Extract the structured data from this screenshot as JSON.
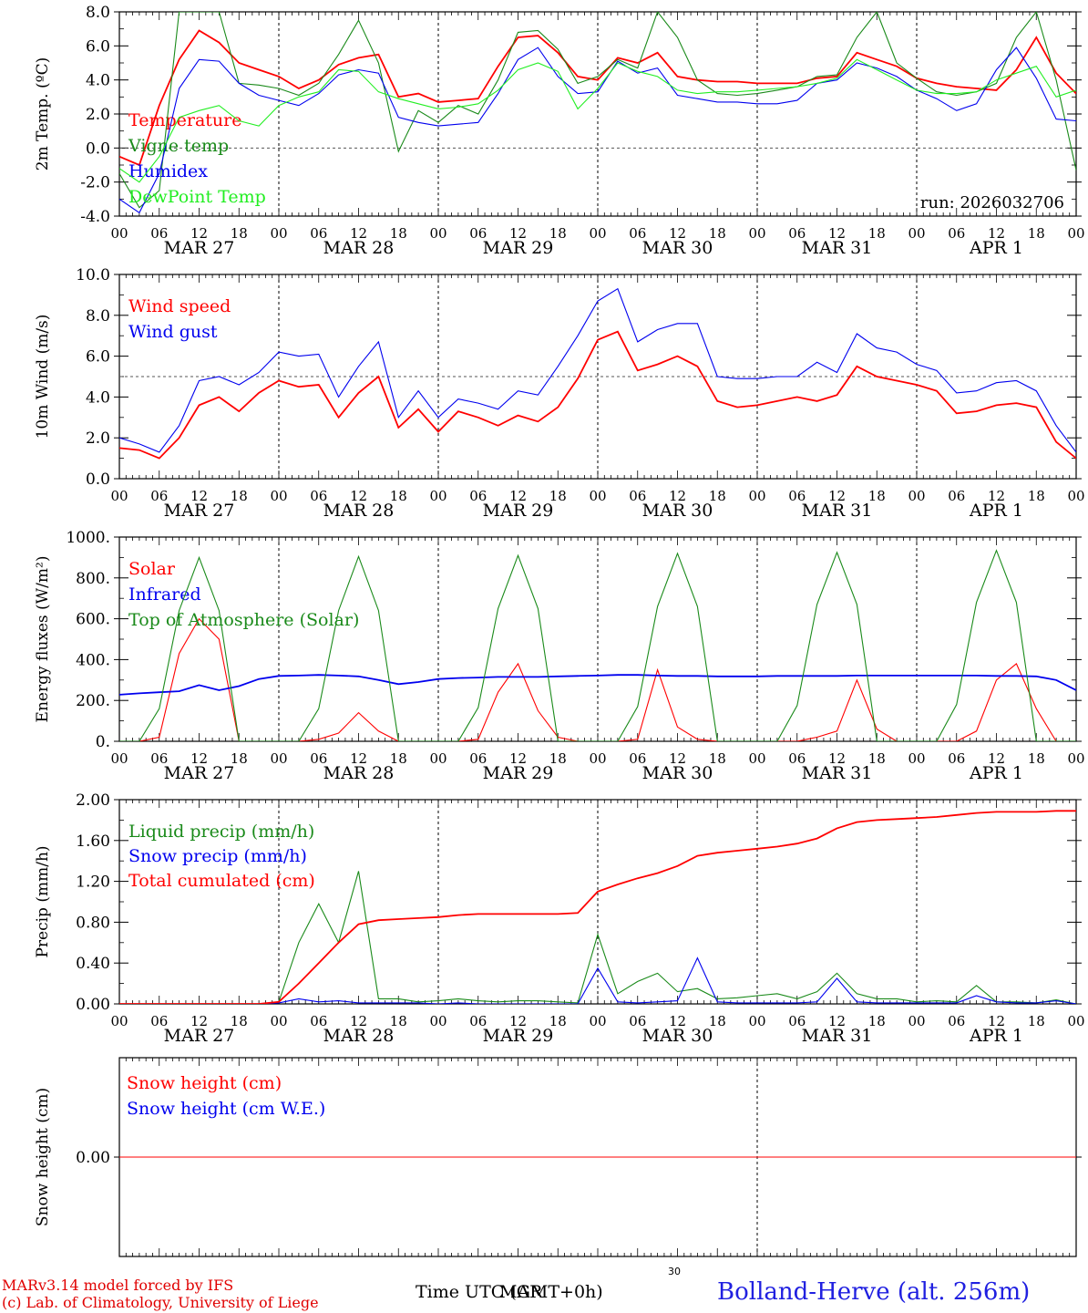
{
  "chart_data": [
    {
      "type": "line",
      "ylabel": "2m Temp. (ºC)",
      "ylim": [
        -4,
        8
      ],
      "yticks": [
        "-4.0",
        "-2.0",
        "0.0",
        "2.0",
        "4.0",
        "6.0",
        "8.0"
      ],
      "reference_line": 0,
      "annotation": "run: 2026032706",
      "x_hours": [
        0,
        3,
        6,
        9,
        12,
        15,
        18,
        21,
        24,
        27,
        30,
        33,
        36,
        39,
        42,
        45,
        48,
        51,
        54,
        57,
        60,
        63,
        66,
        69,
        72,
        75,
        78,
        81,
        84,
        87,
        90,
        93,
        96,
        99,
        102,
        105,
        108,
        111,
        114,
        117,
        120,
        123,
        126,
        129,
        132,
        135,
        138,
        141,
        144
      ],
      "series": [
        {
          "name": "Temperature",
          "color": "#ff0000",
          "values": [
            -0.5,
            -1,
            2.5,
            5.2,
            6.9,
            6.2,
            5,
            4.6,
            4.2,
            3.5,
            4,
            4.9,
            5.3,
            5.5,
            3,
            3.2,
            2.7,
            2.8,
            2.9,
            4.8,
            6.5,
            6.6,
            5.6,
            4.2,
            4,
            5.3,
            5,
            5.6,
            4.2,
            4,
            3.9,
            3.9,
            3.8,
            3.8,
            3.8,
            4.1,
            4.2,
            5.6,
            5.2,
            4.8,
            4.1,
            3.8,
            3.6,
            3.5,
            3.4,
            4.6,
            6.5,
            4.4,
            3.2
          ]
        },
        {
          "name": "Vigne temp",
          "color": "#1a8a1a",
          "values": [
            -1.5,
            -3.5,
            -2.5,
            8,
            8,
            8,
            3.8,
            3.7,
            3.5,
            3.1,
            3.8,
            5.5,
            7.5,
            5,
            -0.2,
            2.2,
            1.5,
            2.5,
            2,
            4,
            6.8,
            6.9,
            5.8,
            3.8,
            4.2,
            5.2,
            4.7,
            8,
            6.5,
            4,
            3.2,
            3.1,
            3.2,
            3.4,
            3.6,
            4.2,
            4.3,
            6.5,
            8,
            5,
            4.1,
            3.3,
            3.1,
            3.3,
            3.8,
            6.5,
            8,
            4,
            -1.3
          ]
        },
        {
          "name": "Humidex",
          "color": "#0000ee",
          "values": [
            -3,
            -3.8,
            -1.5,
            3.5,
            5.2,
            5.1,
            3.8,
            3.1,
            2.8,
            2.5,
            3.2,
            4.3,
            4.6,
            4.4,
            1.8,
            1.5,
            1.3,
            1.4,
            1.5,
            3.2,
            5.2,
            5.9,
            4.2,
            3.2,
            3.3,
            5.1,
            4.4,
            4.7,
            3.1,
            2.9,
            2.7,
            2.7,
            2.6,
            2.6,
            2.8,
            3.8,
            4,
            5,
            4.7,
            4.2,
            3.4,
            2.9,
            2.2,
            2.6,
            4.6,
            5.9,
            4.1,
            1.7,
            1.6
          ]
        },
        {
          "name": "DewPoint Temp",
          "color": "#22ee22",
          "values": [
            -1.2,
            -2,
            -0.5,
            1.8,
            2.2,
            2.5,
            1.6,
            1.3,
            2.5,
            3,
            3.3,
            4.6,
            4.5,
            3.3,
            2.9,
            2.6,
            2.3,
            2.4,
            2.6,
            3.4,
            4.6,
            5,
            4.5,
            2.3,
            3.5,
            5,
            4.5,
            4.2,
            3.4,
            3.2,
            3.3,
            3.3,
            3.4,
            3.5,
            3.6,
            3.8,
            4.1,
            5.2,
            4.6,
            4,
            3.4,
            3.2,
            3.2,
            3.3,
            4,
            4.4,
            4.8,
            3,
            3.4
          ]
        }
      ]
    },
    {
      "type": "line",
      "ylabel": "10m Wind (m/s)",
      "ylim": [
        0,
        10
      ],
      "yticks": [
        "0.0",
        "2.0",
        "4.0",
        "6.0",
        "8.0",
        "10.0"
      ],
      "reference_line": 5,
      "x_hours": [
        0,
        3,
        6,
        9,
        12,
        15,
        18,
        21,
        24,
        27,
        30,
        33,
        36,
        39,
        42,
        45,
        48,
        51,
        54,
        57,
        60,
        63,
        66,
        69,
        72,
        75,
        78,
        81,
        84,
        87,
        90,
        93,
        96,
        99,
        102,
        105,
        108,
        111,
        114,
        117,
        120,
        123,
        126,
        129,
        132,
        135,
        138,
        141,
        144
      ],
      "series": [
        {
          "name": "Wind speed",
          "color": "#ff0000",
          "values": [
            1.5,
            1.4,
            1,
            2,
            3.6,
            4,
            3.3,
            4.2,
            4.8,
            4.5,
            4.6,
            3,
            4.2,
            5,
            2.5,
            3.4,
            2.3,
            3.3,
            3,
            2.6,
            3.1,
            2.8,
            3.5,
            4.9,
            6.8,
            7.2,
            5.3,
            5.6,
            6,
            5.5,
            3.8,
            3.5,
            3.6,
            3.8,
            4,
            3.8,
            4.1,
            5.5,
            5,
            4.8,
            4.6,
            4.3,
            3.2,
            3.3,
            3.6,
            3.7,
            3.5,
            1.8,
            1
          ]
        },
        {
          "name": "Wind gust",
          "color": "#0000ee",
          "values": [
            2,
            1.7,
            1.3,
            2.6,
            4.8,
            5,
            4.6,
            5.2,
            6.2,
            6,
            6.1,
            4,
            5.5,
            6.7,
            3,
            4.3,
            3,
            3.9,
            3.7,
            3.4,
            4.3,
            4.1,
            5.5,
            7,
            8.7,
            9.3,
            6.7,
            7.3,
            7.6,
            7.6,
            5,
            4.9,
            4.9,
            5,
            5,
            5.7,
            5.2,
            7.1,
            6.4,
            6.2,
            5.6,
            5.3,
            4.2,
            4.3,
            4.7,
            4.8,
            4.3,
            2.6,
            1.3
          ]
        }
      ]
    },
    {
      "type": "line",
      "ylabel": "Energy fluxes (W/m²)",
      "ylim": [
        0,
        1000
      ],
      "yticks": [
        "0.",
        "200.",
        "400.",
        "600.",
        "800.",
        "1000."
      ],
      "x_hours": [
        0,
        3,
        6,
        9,
        12,
        15,
        18,
        21,
        24,
        27,
        30,
        33,
        36,
        39,
        42,
        45,
        48,
        51,
        54,
        57,
        60,
        63,
        66,
        69,
        72,
        75,
        78,
        81,
        84,
        87,
        90,
        93,
        96,
        99,
        102,
        105,
        108,
        111,
        114,
        117,
        120,
        123,
        126,
        129,
        132,
        135,
        138,
        141,
        144
      ],
      "series": [
        {
          "name": "Solar",
          "color": "#ff0000",
          "values": [
            0,
            0,
            20,
            430,
            600,
            500,
            0,
            0,
            0,
            0,
            10,
            40,
            140,
            50,
            0,
            0,
            0,
            0,
            10,
            240,
            380,
            150,
            20,
            0,
            0,
            0,
            10,
            350,
            70,
            10,
            0,
            0,
            0,
            0,
            0,
            20,
            50,
            300,
            60,
            0,
            0,
            0,
            0,
            50,
            300,
            380,
            160,
            0,
            0
          ]
        },
        {
          "name": "Infrared",
          "color": "#0000ee",
          "values": [
            228,
            235,
            240,
            245,
            275,
            250,
            270,
            305,
            320,
            322,
            325,
            322,
            318,
            300,
            280,
            290,
            305,
            310,
            312,
            315,
            315,
            315,
            318,
            320,
            322,
            325,
            325,
            322,
            320,
            320,
            318,
            318,
            318,
            320,
            320,
            320,
            320,
            322,
            322,
            322,
            322,
            322,
            322,
            322,
            320,
            320,
            318,
            300,
            250
          ]
        },
        {
          "name": "Top of Atmosphere (Solar)",
          "color": "#1a8a1a",
          "values": [
            0,
            0,
            160,
            640,
            900,
            640,
            0,
            0,
            0,
            0,
            160,
            640,
            905,
            640,
            0,
            0,
            0,
            0,
            165,
            650,
            910,
            650,
            0,
            0,
            0,
            0,
            170,
            660,
            920,
            660,
            0,
            0,
            0,
            0,
            175,
            670,
            925,
            670,
            0,
            0,
            0,
            0,
            180,
            680,
            935,
            680,
            0,
            0,
            0
          ]
        }
      ]
    },
    {
      "type": "line",
      "ylabel": "Precip (mm/h)",
      "ylim": [
        0,
        2
      ],
      "yticks": [
        "0.00",
        "0.40",
        "0.80",
        "1.20",
        "1.60",
        "2.00"
      ],
      "x_hours": [
        0,
        3,
        6,
        9,
        12,
        15,
        18,
        21,
        24,
        27,
        30,
        33,
        36,
        39,
        42,
        45,
        48,
        51,
        54,
        57,
        60,
        63,
        66,
        69,
        72,
        75,
        78,
        81,
        84,
        87,
        90,
        93,
        96,
        99,
        102,
        105,
        108,
        111,
        114,
        117,
        120,
        123,
        126,
        129,
        132,
        135,
        138,
        141,
        144
      ],
      "series": [
        {
          "name": "Liquid precip (mm/h)",
          "color": "#1a8a1a",
          "values": [
            0,
            0,
            0,
            0,
            0,
            0,
            0,
            0,
            0.02,
            0.6,
            0.98,
            0.6,
            1.3,
            0.05,
            0.05,
            0.02,
            0.03,
            0.05,
            0.03,
            0.02,
            0.03,
            0.03,
            0.02,
            0.01,
            0.68,
            0.1,
            0.22,
            0.3,
            0.12,
            0.15,
            0.05,
            0.06,
            0.08,
            0.1,
            0.05,
            0.12,
            0.3,
            0.1,
            0.05,
            0.05,
            0.02,
            0.03,
            0.02,
            0.18,
            0.02,
            0.02,
            0.01,
            0.04,
            0
          ]
        },
        {
          "name": "Snow precip (mm/h)",
          "color": "#0000ee",
          "values": [
            0,
            0,
            0,
            0,
            0,
            0,
            0,
            0,
            0.01,
            0.05,
            0.02,
            0.03,
            0.01,
            0.01,
            0.01,
            0.01,
            0,
            0.01,
            0,
            0,
            0,
            0,
            0,
            0,
            0.35,
            0.02,
            0.01,
            0.02,
            0.03,
            0.45,
            0.02,
            0.01,
            0.01,
            0.01,
            0.01,
            0.02,
            0.25,
            0.02,
            0.01,
            0.01,
            0.01,
            0.01,
            0.01,
            0.08,
            0.02,
            0.01,
            0.01,
            0.03,
            0
          ]
        },
        {
          "name": "Total cumulated (cm)",
          "color": "#ff0000",
          "values": [
            0,
            0,
            0,
            0,
            0,
            0,
            0,
            0,
            0.02,
            0.2,
            0.4,
            0.6,
            0.78,
            0.82,
            0.83,
            0.84,
            0.85,
            0.87,
            0.88,
            0.88,
            0.88,
            0.88,
            0.88,
            0.89,
            1.1,
            1.17,
            1.23,
            1.28,
            1.35,
            1.45,
            1.48,
            1.5,
            1.52,
            1.54,
            1.57,
            1.62,
            1.72,
            1.78,
            1.8,
            1.81,
            1.82,
            1.83,
            1.85,
            1.87,
            1.88,
            1.88,
            1.88,
            1.89,
            1.89
          ]
        }
      ]
    },
    {
      "type": "line",
      "ylabel": "Snow height (cm)",
      "ylim": [
        -0.5,
        0.5
      ],
      "yticks": [
        "0.00"
      ],
      "series": [
        {
          "name": "Snow height (cm)",
          "color": "#ff0000",
          "values": [
            0,
            0
          ]
        },
        {
          "name": "Snow height (cm W.E.)",
          "color": "#0000ee",
          "values": []
        }
      ]
    }
  ],
  "x_axis": {
    "tick_labels": [
      "00",
      "06",
      "12",
      "18"
    ],
    "end_label": "00",
    "days": [
      "MAR 27",
      "MAR 28",
      "MAR 29",
      "MAR 30",
      "MAR 31",
      "APR  1"
    ],
    "title": "Time UTC (GMT+0h)",
    "stray_labels": [
      "MAR",
      "30"
    ]
  },
  "footer": {
    "credit_line1": "MARv3.14 model forced by IFS",
    "credit_line2": "(c) Lab. of Climatology, University of Liege",
    "station": "Bolland-Herve (alt. 256m)"
  }
}
